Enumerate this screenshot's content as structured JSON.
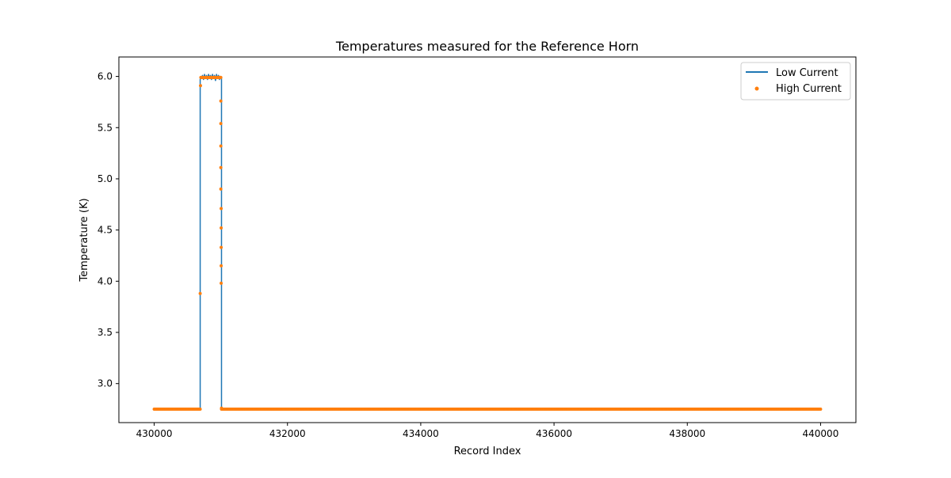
{
  "chart_data": {
    "type": "line",
    "title": "Temperatures measured for the Reference Horn",
    "xlabel": "Record Index",
    "ylabel": "Temperature (K)",
    "xlim": [
      429470,
      440530
    ],
    "ylim": [
      2.619,
      6.19
    ],
    "x_ticks": [
      430000,
      432000,
      434000,
      436000,
      438000,
      440000
    ],
    "x_tick_labels": [
      "430000",
      "432000",
      "434000",
      "436000",
      "438000",
      "440000"
    ],
    "y_ticks": [
      3.0,
      3.5,
      4.0,
      4.5,
      5.0,
      5.5,
      6.0
    ],
    "y_tick_labels": [
      "3.0",
      "3.5",
      "4.0",
      "4.5",
      "5.0",
      "5.5",
      "6.0"
    ],
    "grid": false,
    "legend_position": "upper-right",
    "series": [
      {
        "name": "Low Current",
        "style": "line",
        "color": "#1f77b4",
        "x": [
          430000,
          430690,
          430690,
          430700,
          430710,
          430725,
          430740,
          430755,
          430770,
          430785,
          430800,
          430815,
          430830,
          430845,
          430860,
          430875,
          430890,
          430905,
          430920,
          430935,
          430950,
          430965,
          430980,
          431000,
          431005,
          431010,
          431010,
          440000
        ],
        "y": [
          2.75,
          2.75,
          5.97,
          6.0,
          5.98,
          6.01,
          5.97,
          6.02,
          5.98,
          6.01,
          5.97,
          6.02,
          5.99,
          6.01,
          5.97,
          6.02,
          5.98,
          6.01,
          5.96,
          6.02,
          5.98,
          6.01,
          5.97,
          6.0,
          5.99,
          5.98,
          2.75,
          2.75
        ]
      },
      {
        "name": "High Current",
        "style": "scatter",
        "color": "#ff7f0e",
        "points_flat_before": {
          "x_start": 430000,
          "x_end": 430690,
          "y": 2.75
        },
        "points_plateau": {
          "x_start": 430700,
          "x_end": 431000,
          "y": 5.99
        },
        "points_flat_after": {
          "x_start": 431010,
          "x_end": 440000,
          "y": 2.75
        },
        "points_extra": [
          [
            430690,
            3.88
          ],
          [
            430695,
            5.91
          ],
          [
            431000,
            5.76
          ],
          [
            431000,
            5.54
          ],
          [
            431000,
            5.32
          ],
          [
            431000,
            5.11
          ],
          [
            431000,
            4.9
          ],
          [
            431005,
            4.71
          ],
          [
            431005,
            4.52
          ],
          [
            431005,
            4.33
          ],
          [
            431005,
            4.15
          ],
          [
            431005,
            3.98
          ],
          [
            431010,
            2.76
          ]
        ]
      }
    ]
  }
}
